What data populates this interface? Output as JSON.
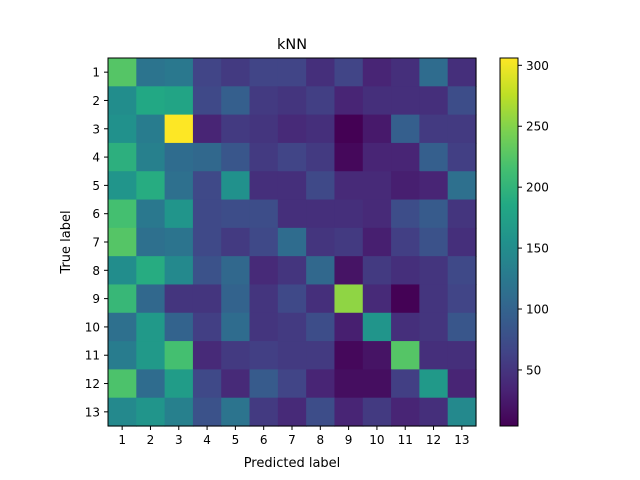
{
  "chart_data": {
    "type": "heatmap",
    "title": "kNN",
    "xlabel": "Predicted label",
    "ylabel": "True label",
    "x_ticks": [
      "1",
      "2",
      "3",
      "4",
      "5",
      "6",
      "7",
      "8",
      "9",
      "10",
      "11",
      "12",
      "13"
    ],
    "y_ticks": [
      "1",
      "2",
      "3",
      "4",
      "5",
      "6",
      "7",
      "8",
      "9",
      "10",
      "11",
      "12",
      "13"
    ],
    "colormap": "viridis",
    "vmin": 4,
    "vmax": 306,
    "colorbar_ticks": [
      50,
      100,
      150,
      200,
      250,
      300
    ],
    "matrix": [
      [
        225,
        120,
        125,
        65,
        55,
        65,
        65,
        45,
        65,
        35,
        45,
        110,
        45
      ],
      [
        150,
        185,
        180,
        70,
        95,
        55,
        50,
        60,
        35,
        45,
        45,
        45,
        75
      ],
      [
        155,
        130,
        306,
        35,
        55,
        50,
        40,
        45,
        4,
        25,
        95,
        55,
        55
      ],
      [
        195,
        135,
        110,
        105,
        85,
        55,
        65,
        55,
        10,
        35,
        35,
        95,
        60
      ],
      [
        160,
        190,
        115,
        70,
        155,
        45,
        45,
        70,
        40,
        40,
        30,
        35,
        115
      ],
      [
        215,
        125,
        160,
        70,
        75,
        75,
        45,
        45,
        45,
        40,
        75,
        90,
        50
      ],
      [
        225,
        115,
        120,
        70,
        55,
        70,
        110,
        50,
        55,
        30,
        60,
        80,
        45
      ],
      [
        150,
        190,
        145,
        80,
        105,
        40,
        50,
        105,
        20,
        55,
        45,
        50,
        70
      ],
      [
        205,
        105,
        50,
        50,
        100,
        50,
        70,
        45,
        255,
        40,
        5,
        50,
        65
      ],
      [
        115,
        165,
        100,
        60,
        110,
        50,
        55,
        75,
        30,
        160,
        45,
        50,
        85
      ],
      [
        130,
        165,
        215,
        40,
        55,
        60,
        55,
        55,
        10,
        20,
        225,
        45,
        45
      ],
      [
        220,
        110,
        170,
        70,
        40,
        90,
        65,
        35,
        15,
        15,
        60,
        165,
        35
      ],
      [
        145,
        160,
        135,
        80,
        120,
        55,
        40,
        75,
        35,
        55,
        35,
        45,
        145
      ]
    ]
  }
}
